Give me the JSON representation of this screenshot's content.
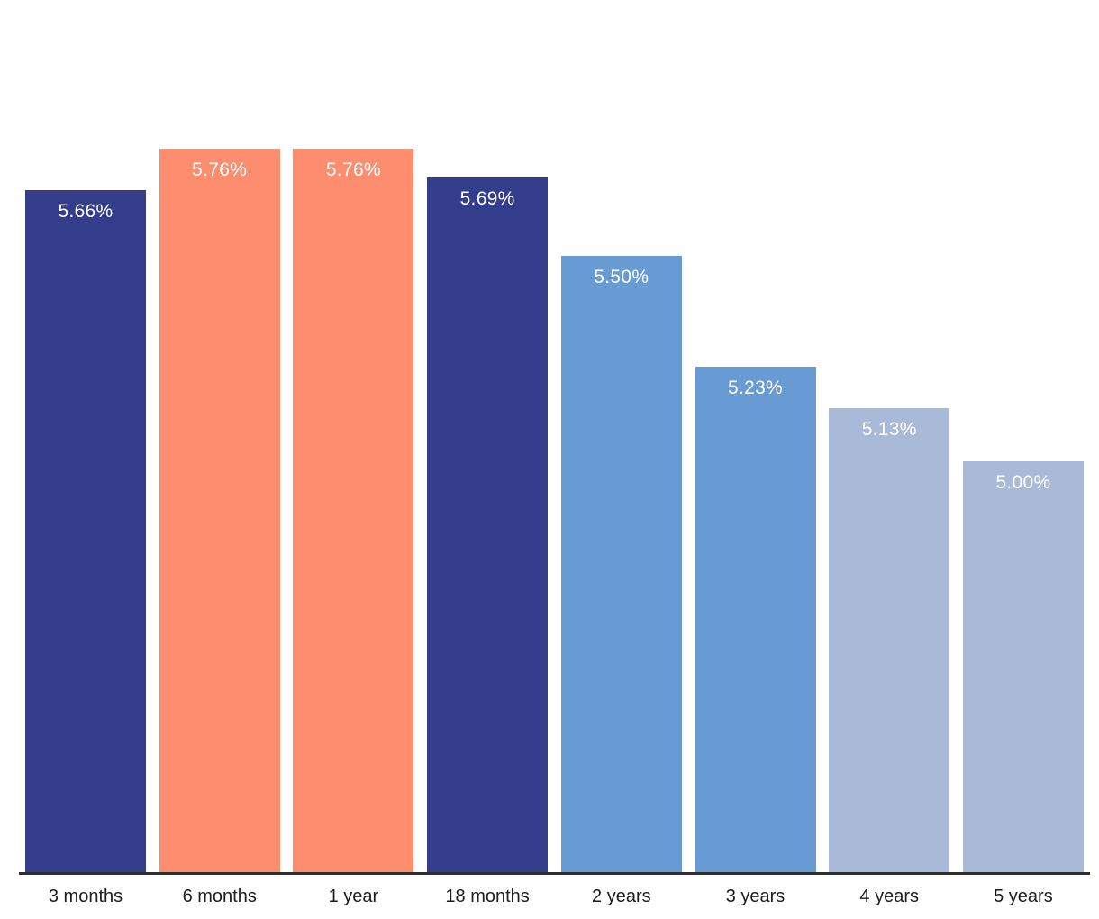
{
  "chart_data": {
    "type": "bar",
    "title": "",
    "xlabel": "",
    "ylabel": "",
    "categories": [
      "3 months",
      "6 months",
      "1 year",
      "18 months",
      "2 years",
      "3 years",
      "4 years",
      "5 years"
    ],
    "values": [
      5.66,
      5.76,
      5.76,
      5.69,
      5.5,
      5.23,
      5.13,
      5.0
    ],
    "value_labels": [
      "5.66%",
      "5.76%",
      "5.76%",
      "5.69%",
      "5.50%",
      "5.23%",
      "5.13%",
      "5.00%"
    ],
    "bar_colors": [
      "#333d8b",
      "#fc8d6e",
      "#fc8d6e",
      "#333d8b",
      "#689bd3",
      "#689bd3",
      "#a9bad9",
      "#a9bad9"
    ],
    "ylim": [
      4.0,
      5.8
    ],
    "grid": false,
    "legend_position": "none",
    "styles": {
      "background": "#ffffff",
      "value_label_color": "#ffffff",
      "axis_line_color": "#2e2e2e",
      "tick_label_color": "#1c1c1c"
    }
  }
}
